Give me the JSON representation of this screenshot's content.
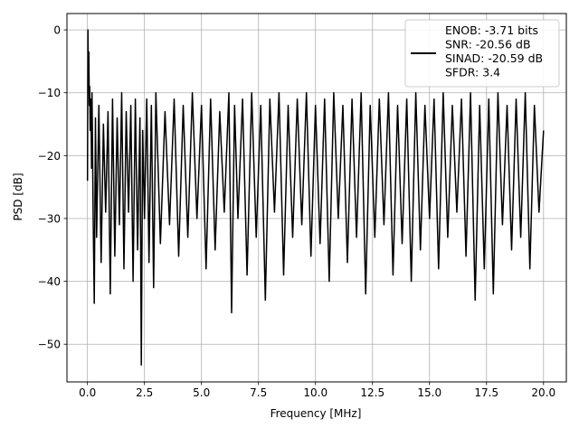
{
  "chart_data": {
    "type": "line",
    "xlabel": "Frequency [MHz]",
    "ylabel": "PSD [dB]",
    "xlim": [
      -0.9,
      21.0
    ],
    "ylim": [
      -56.0,
      2.6
    ],
    "x_ticks": [
      0.0,
      2.5,
      5.0,
      7.5,
      10.0,
      12.5,
      15.0,
      17.5,
      20.0
    ],
    "x_tick_labels": [
      "0.0",
      "2.5",
      "5.0",
      "7.5",
      "10.0",
      "12.5",
      "15.0",
      "17.5",
      "20.0"
    ],
    "y_ticks": [
      0,
      -10,
      -20,
      -30,
      -40,
      -50
    ],
    "y_tick_labels": [
      "0",
      "−10",
      "−20",
      "−30",
      "−40",
      "−50"
    ],
    "grid": true,
    "legend_position": "top-right",
    "series": [
      {
        "name": "ENOB: -3.71 bits\nSNR: -20.56 dB\nSINAD: -20.59 dB\nSFDR: 3.4",
        "color": "#000000",
        "x": [
          0.0,
          0.02,
          0.04,
          0.06,
          0.08,
          0.1,
          0.12,
          0.15,
          0.18,
          0.2,
          0.25,
          0.3,
          0.35,
          0.4,
          0.5,
          0.6,
          0.7,
          0.8,
          0.9,
          1.0,
          1.1,
          1.2,
          1.3,
          1.4,
          1.5,
          1.6,
          1.7,
          1.8,
          1.9,
          2.0,
          2.1,
          2.2,
          2.3,
          2.36,
          2.42,
          2.5,
          2.6,
          2.7,
          2.8,
          2.9,
          3.0,
          3.2,
          3.4,
          3.6,
          3.8,
          4.0,
          4.2,
          4.4,
          4.6,
          4.8,
          5.0,
          5.2,
          5.4,
          5.6,
          5.8,
          6.0,
          6.2,
          6.32,
          6.45,
          6.6,
          6.8,
          7.0,
          7.2,
          7.4,
          7.6,
          7.8,
          8.0,
          8.2,
          8.4,
          8.6,
          8.8,
          9.0,
          9.2,
          9.4,
          9.6,
          9.8,
          10.0,
          10.2,
          10.4,
          10.6,
          10.8,
          11.0,
          11.2,
          11.4,
          11.6,
          11.8,
          12.0,
          12.2,
          12.4,
          12.6,
          12.8,
          13.0,
          13.2,
          13.4,
          13.6,
          13.8,
          14.0,
          14.2,
          14.4,
          14.6,
          14.8,
          15.0,
          15.2,
          15.4,
          15.6,
          15.8,
          16.0,
          16.2,
          16.4,
          16.6,
          16.8,
          17.0,
          17.2,
          17.4,
          17.6,
          17.8,
          18.0,
          18.2,
          18.4,
          18.6,
          18.8,
          19.0,
          19.2,
          19.4,
          19.6,
          19.8,
          20.0
        ],
        "y": [
          -24.0,
          0.0,
          -8.0,
          -3.5,
          -12.0,
          -9.0,
          -16.0,
          -11.0,
          -22.0,
          -10.0,
          -30.0,
          -43.5,
          -14.0,
          -33.0,
          -12.0,
          -37.0,
          -15.0,
          -29.0,
          -13.0,
          -42.0,
          -11.0,
          -36.0,
          -14.0,
          -31.0,
          -10.0,
          -38.0,
          -13.0,
          -29.0,
          -12.0,
          -40.0,
          -11.0,
          -35.0,
          -14.0,
          -53.3,
          -16.0,
          -30.0,
          -11.0,
          -37.0,
          -12.0,
          -41.0,
          -10.0,
          -34.0,
          -13.0,
          -31.0,
          -11.0,
          -36.0,
          -12.0,
          -33.0,
          -10.0,
          -30.0,
          -12.0,
          -38.0,
          -11.0,
          -35.0,
          -13.0,
          -29.0,
          -10.0,
          -45.0,
          -12.0,
          -30.0,
          -11.0,
          -39.0,
          -10.0,
          -33.0,
          -12.0,
          -43.0,
          -11.0,
          -29.0,
          -10.0,
          -39.0,
          -12.0,
          -33.0,
          -11.0,
          -31.0,
          -10.0,
          -36.0,
          -12.0,
          -34.0,
          -11.0,
          -40.0,
          -10.0,
          -30.0,
          -12.0,
          -37.0,
          -11.0,
          -33.0,
          -10.0,
          -42.0,
          -12.0,
          -33.0,
          -11.0,
          -31.0,
          -10.0,
          -39.0,
          -12.0,
          -34.0,
          -11.0,
          -40.0,
          -10.0,
          -35.0,
          -12.0,
          -30.0,
          -11.0,
          -38.0,
          -10.0,
          -33.0,
          -12.0,
          -29.0,
          -11.0,
          -36.0,
          -10.0,
          -43.0,
          -12.0,
          -38.0,
          -11.0,
          -42.0,
          -10.0,
          -31.0,
          -12.0,
          -35.0,
          -11.0,
          -33.0,
          -10.0,
          -38.0,
          -12.0,
          -29.0,
          -16.0
        ]
      }
    ]
  }
}
